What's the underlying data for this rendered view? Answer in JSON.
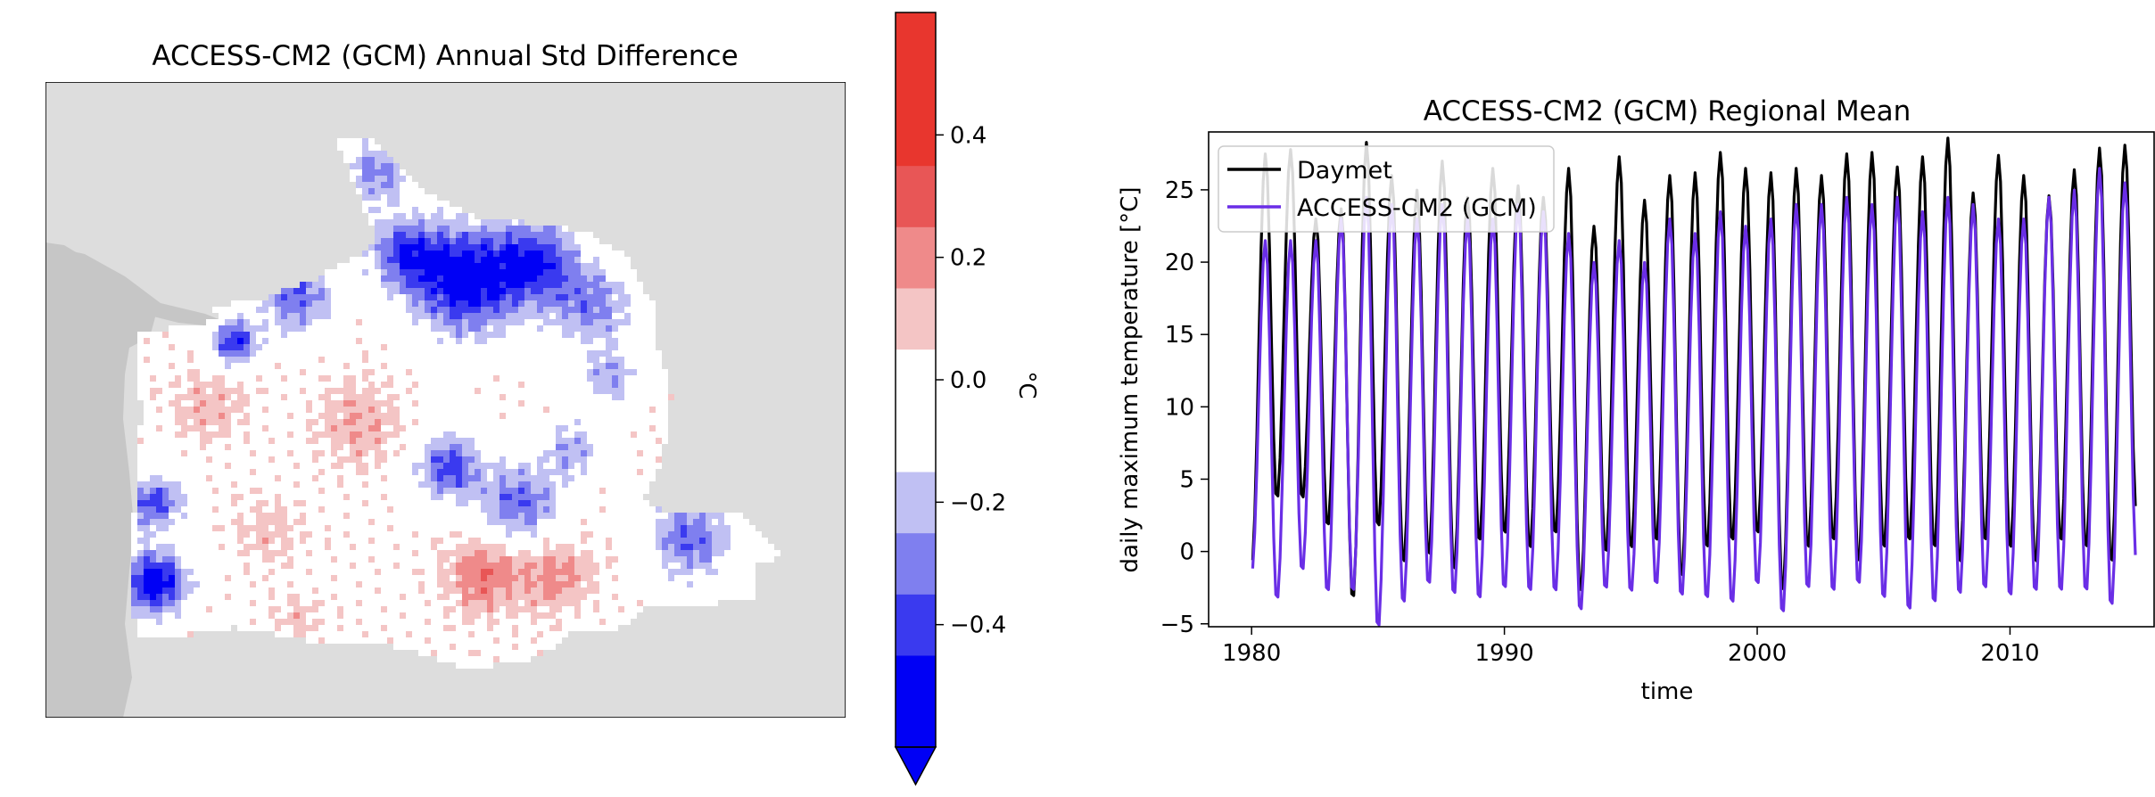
{
  "figure": {
    "map": {
      "title": "ACCESS-CM2 (GCM) Annual Std Difference",
      "ocean_color": "#c8c8c8",
      "land_color": "#dddddd"
    },
    "colorbar": {
      "label": "°C",
      "tick_labels": [
        "0.4",
        "0.2",
        "0.0",
        "−0.2",
        "−0.4"
      ],
      "tick_values": [
        0.4,
        0.2,
        0.0,
        -0.2,
        -0.4
      ],
      "range": [
        -0.6,
        0.6
      ],
      "levels": [
        {
          "from": -0.6,
          "to": -0.45,
          "color": "#0000f5"
        },
        {
          "from": -0.45,
          "to": -0.35,
          "color": "#3a3aef"
        },
        {
          "from": -0.35,
          "to": -0.25,
          "color": "#7f7fef"
        },
        {
          "from": -0.25,
          "to": -0.15,
          "color": "#c0c0f3"
        },
        {
          "from": -0.15,
          "to": 0.05,
          "color": "#ffffff"
        },
        {
          "from": 0.05,
          "to": 0.15,
          "color": "#f4c5c5"
        },
        {
          "from": 0.15,
          "to": 0.25,
          "color": "#ef8a8a"
        },
        {
          "from": 0.25,
          "to": 0.35,
          "color": "#e85656"
        },
        {
          "from": 0.35,
          "to": 0.6,
          "color": "#e8362e"
        }
      ]
    }
  },
  "chart_data": {
    "type": "line",
    "title": "ACCESS-CM2 (GCM) Regional Mean",
    "xlabel": "time",
    "ylabel": "daily maximum temperature [°C]",
    "xlim": [
      1978.3,
      2015.7
    ],
    "ylim": [
      -5.2,
      29.0
    ],
    "x_ticks": [
      1980,
      1990,
      2000,
      2010
    ],
    "y_ticks": [
      -5,
      0,
      5,
      10,
      15,
      20,
      25
    ],
    "legend_position": "top-left",
    "series": [
      {
        "name": "Daymet",
        "color": "#000000",
        "start": 1980,
        "end": 2015,
        "summer_peaks": [
          27.5,
          27.8,
          23.0,
          23.7,
          28.3,
          26.0,
          25.0,
          27.0,
          24.5,
          26.5,
          25.3,
          24.5,
          26.5,
          22.5,
          27.3,
          24.3,
          26.0,
          26.2,
          27.6,
          26.5,
          26.2,
          26.5,
          26.0,
          27.5,
          27.6,
          26.6,
          27.3,
          28.6,
          24.8,
          27.4,
          26.0,
          24.6,
          26.4,
          27.9,
          28.1
        ],
        "winter_troughs": [
          -1.0,
          3.5,
          3.5,
          1.6,
          -3.5,
          1.5,
          -1.0,
          -0.5,
          -1.5,
          0.5,
          1.0,
          0.0,
          1.0,
          -3.0,
          -0.3,
          0.0,
          0.5,
          -2.0,
          0.0,
          0.5,
          1.0,
          -3.0,
          0.0,
          0.5,
          -1.0,
          0.0,
          0.5,
          0.0,
          -1.0,
          0.5,
          0.0,
          -1.0,
          0.5,
          0.0,
          -1.0,
          2.6
        ]
      },
      {
        "name": "ACCESS-CM2 (GCM)",
        "color": "#6a2ee6",
        "start": 1980,
        "end": 2015,
        "summer_peaks": [
          21.5,
          21.5,
          21.5,
          23.0,
          24.5,
          24.0,
          23.0,
          24.0,
          23.0,
          23.0,
          24.0,
          23.5,
          22.0,
          20.0,
          21.5,
          20.0,
          23.0,
          22.0,
          23.5,
          22.5,
          23.0,
          24.0,
          24.0,
          24.5,
          24.0,
          24.5,
          23.5,
          24.5,
          24.0,
          23.0,
          23.0,
          24.5,
          25.0,
          26.5,
          25.5
        ],
        "winter_troughs": [
          -1.5,
          -3.5,
          -1.5,
          -3.0,
          -3.0,
          -5.5,
          -3.8,
          -2.5,
          -3.2,
          -3.5,
          -2.8,
          -3.0,
          -3.0,
          -4.3,
          -2.8,
          -3.0,
          -2.5,
          -3.3,
          -3.5,
          -3.8,
          -2.5,
          -4.5,
          -2.8,
          -3.0,
          -2.5,
          -3.5,
          -4.3,
          -3.8,
          -3.2,
          -2.8,
          -3.3,
          -3.0,
          -3.0,
          -3.0,
          -4.0,
          -0.8
        ]
      }
    ]
  }
}
